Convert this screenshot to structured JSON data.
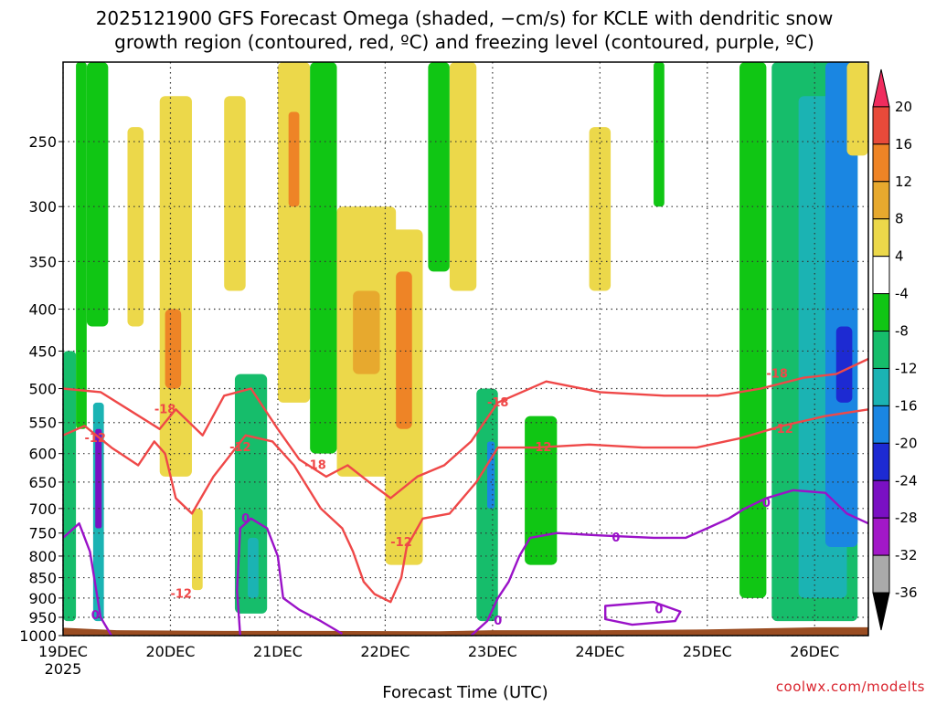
{
  "chart_data": {
    "type": "heatmap",
    "title_lines": [
      "2025121900 GFS Forecast Omega (shaded, −cm/s) for KCLE with dendritic snow",
      "growth region (contoured, red, ºC) and freezing level (contoured, purple, ºC)"
    ],
    "xlabel": "Forecast Time (UTC)",
    "ylabel": "",
    "credit": "coolwx.com/modelts",
    "x_ticks": [
      {
        "t": 0,
        "label": "19DEC",
        "sub": "2025"
      },
      {
        "t": 1,
        "label": "20DEC",
        "sub": ""
      },
      {
        "t": 2,
        "label": "21DEC",
        "sub": ""
      },
      {
        "t": 3,
        "label": "22DEC",
        "sub": ""
      },
      {
        "t": 4,
        "label": "23DEC",
        "sub": ""
      },
      {
        "t": 5,
        "label": "24DEC",
        "sub": ""
      },
      {
        "t": 6,
        "label": "25DEC",
        "sub": ""
      },
      {
        "t": 7,
        "label": "26DEC",
        "sub": ""
      }
    ],
    "x_range_days": [
      0,
      7.5
    ],
    "y_ticks": [
      250,
      300,
      350,
      400,
      450,
      500,
      550,
      600,
      650,
      700,
      750,
      800,
      850,
      900,
      950,
      1000
    ],
    "y_range_hpa": [
      200,
      1000
    ],
    "y_scale": "log",
    "grid": true,
    "colorbar": {
      "labels": [
        "20",
        "16",
        "12",
        "8",
        "4",
        "-4",
        "-8",
        "-12",
        "-16",
        "-20",
        "-24",
        "-28",
        "-32",
        "-36"
      ],
      "colors": [
        "#f02c5e",
        "#e84a3a",
        "#ee8426",
        "#e7a92e",
        "#ecd84a",
        "#ffffff",
        "#10c614",
        "#16bd6b",
        "#1bb3b3",
        "#1a86e2",
        "#1d2ad2",
        "#7a10c3",
        "#a218c8",
        "#aaaaaa",
        "#000000"
      ]
    },
    "omega_colors": {
      "pos4": "#ecd84a",
      "pos8": "#e7a92e",
      "pos12": "#ee8426",
      "pos16": "#e84a3a",
      "neg4": "#10c614",
      "neg8": "#16bd6b",
      "neg12": "#1bb3b3",
      "neg16": "#1a86e2",
      "neg20": "#1d2ad2",
      "neg24": "#7a10c3",
      "ground": "#9a4d22",
      "dgz": "#ef4848",
      "freezing": "#9a12c8"
    },
    "omega_regions": [
      {
        "t0": 0.0,
        "t1": 0.12,
        "p0": 450,
        "p1": 960,
        "level": "neg8"
      },
      {
        "t0": 0.12,
        "t1": 0.22,
        "p0": 200,
        "p1": 560,
        "level": "neg4"
      },
      {
        "t0": 0.22,
        "t1": 0.42,
        "p0": 200,
        "p1": 420,
        "level": "neg4"
      },
      {
        "t0": 0.28,
        "t1": 0.38,
        "p0": 520,
        "p1": 960,
        "level": "neg12"
      },
      {
        "t0": 0.3,
        "t1": 0.36,
        "p0": 560,
        "p1": 740,
        "level": "neg24"
      },
      {
        "t0": 0.6,
        "t1": 0.75,
        "p0": 240,
        "p1": 420,
        "level": "pos4"
      },
      {
        "t0": 0.9,
        "t1": 1.2,
        "p0": 220,
        "p1": 640,
        "level": "pos4"
      },
      {
        "t0": 0.95,
        "t1": 1.1,
        "p0": 400,
        "p1": 500,
        "level": "pos12"
      },
      {
        "t0": 1.2,
        "t1": 1.3,
        "p0": 700,
        "p1": 880,
        "level": "pos4"
      },
      {
        "t0": 1.5,
        "t1": 1.7,
        "p0": 220,
        "p1": 380,
        "level": "pos4"
      },
      {
        "t0": 1.6,
        "t1": 1.9,
        "p0": 480,
        "p1": 940,
        "level": "neg8"
      },
      {
        "t0": 1.72,
        "t1": 1.82,
        "p0": 760,
        "p1": 900,
        "level": "neg12"
      },
      {
        "t0": 2.0,
        "t1": 2.3,
        "p0": 200,
        "p1": 520,
        "level": "pos4"
      },
      {
        "t0": 2.1,
        "t1": 2.2,
        "p0": 230,
        "p1": 300,
        "level": "pos12"
      },
      {
        "t0": 2.3,
        "t1": 2.55,
        "p0": 200,
        "p1": 600,
        "level": "neg4"
      },
      {
        "t0": 2.55,
        "t1": 3.1,
        "p0": 300,
        "p1": 640,
        "level": "pos4"
      },
      {
        "t0": 2.7,
        "t1": 2.95,
        "p0": 380,
        "p1": 480,
        "level": "pos8"
      },
      {
        "t0": 3.0,
        "t1": 3.35,
        "p0": 320,
        "p1": 820,
        "level": "pos4"
      },
      {
        "t0": 3.1,
        "t1": 3.25,
        "p0": 360,
        "p1": 560,
        "level": "pos12"
      },
      {
        "t0": 3.4,
        "t1": 3.6,
        "p0": 200,
        "p1": 360,
        "level": "neg4"
      },
      {
        "t0": 3.6,
        "t1": 3.85,
        "p0": 200,
        "p1": 380,
        "level": "pos4"
      },
      {
        "t0": 3.85,
        "t1": 4.05,
        "p0": 500,
        "p1": 960,
        "level": "neg8"
      },
      {
        "t0": 3.95,
        "t1": 4.02,
        "p0": 580,
        "p1": 700,
        "level": "neg16"
      },
      {
        "t0": 4.3,
        "t1": 4.6,
        "p0": 540,
        "p1": 820,
        "level": "neg4"
      },
      {
        "t0": 4.9,
        "t1": 5.1,
        "p0": 240,
        "p1": 380,
        "level": "pos4"
      },
      {
        "t0": 5.5,
        "t1": 5.6,
        "p0": 200,
        "p1": 300,
        "level": "neg4"
      },
      {
        "t0": 6.3,
        "t1": 6.55,
        "p0": 200,
        "p1": 900,
        "level": "neg4"
      },
      {
        "t0": 6.6,
        "t1": 7.4,
        "p0": 200,
        "p1": 960,
        "level": "neg8"
      },
      {
        "t0": 6.85,
        "t1": 7.3,
        "p0": 220,
        "p1": 900,
        "level": "neg12"
      },
      {
        "t0": 7.1,
        "t1": 7.4,
        "p0": 200,
        "p1": 780,
        "level": "neg16"
      },
      {
        "t0": 7.2,
        "t1": 7.35,
        "p0": 420,
        "p1": 520,
        "level": "neg20"
      },
      {
        "t0": 7.3,
        "t1": 7.5,
        "p0": 200,
        "p1": 260,
        "level": "pos4"
      }
    ],
    "series": [
      {
        "name": "-18",
        "kind": "dgz",
        "label_points": [
          {
            "t": 0.95,
            "p": 530
          },
          {
            "t": 2.35,
            "p": 620
          },
          {
            "t": 4.05,
            "p": 520
          },
          {
            "t": 6.65,
            "p": 480
          }
        ],
        "points": [
          [
            0.0,
            500
          ],
          [
            0.35,
            505
          ],
          [
            0.9,
            560
          ],
          [
            1.05,
            530
          ],
          [
            1.3,
            570
          ],
          [
            1.5,
            510
          ],
          [
            1.75,
            500
          ],
          [
            2.0,
            560
          ],
          [
            2.2,
            610
          ],
          [
            2.45,
            640
          ],
          [
            2.65,
            620
          ],
          [
            2.85,
            650
          ],
          [
            3.05,
            680
          ],
          [
            3.3,
            640
          ],
          [
            3.55,
            620
          ],
          [
            3.8,
            580
          ],
          [
            4.05,
            520
          ],
          [
            4.5,
            490
          ],
          [
            5.0,
            505
          ],
          [
            5.6,
            510
          ],
          [
            6.1,
            510
          ],
          [
            6.5,
            500
          ],
          [
            6.9,
            485
          ],
          [
            7.2,
            480
          ],
          [
            7.5,
            460
          ]
        ]
      },
      {
        "name": "-12",
        "kind": "dgz",
        "label_points": [
          {
            "t": 0.3,
            "p": 575
          },
          {
            "t": 1.65,
            "p": 590
          },
          {
            "t": 3.15,
            "p": 770
          },
          {
            "t": 4.45,
            "p": 590
          },
          {
            "t": 6.7,
            "p": 560
          },
          {
            "t": 1.1,
            "p": 890
          }
        ],
        "points": [
          [
            0.0,
            570
          ],
          [
            0.2,
            555
          ],
          [
            0.45,
            590
          ],
          [
            0.7,
            620
          ],
          [
            0.85,
            580
          ],
          [
            0.95,
            600
          ],
          [
            1.05,
            680
          ],
          [
            1.2,
            710
          ],
          [
            1.4,
            640
          ],
          [
            1.7,
            570
          ],
          [
            1.95,
            580
          ],
          [
            2.15,
            620
          ],
          [
            2.4,
            700
          ],
          [
            2.6,
            740
          ],
          [
            2.7,
            790
          ],
          [
            2.8,
            860
          ],
          [
            2.9,
            890
          ],
          [
            3.05,
            910
          ],
          [
            3.15,
            850
          ],
          [
            3.2,
            780
          ],
          [
            3.35,
            720
          ],
          [
            3.6,
            710
          ],
          [
            3.85,
            650
          ],
          [
            4.05,
            590
          ],
          [
            4.4,
            590
          ],
          [
            4.9,
            585
          ],
          [
            5.4,
            590
          ],
          [
            5.9,
            590
          ],
          [
            6.3,
            575
          ],
          [
            6.7,
            555
          ],
          [
            7.1,
            540
          ],
          [
            7.5,
            530
          ]
        ]
      },
      {
        "name": "0",
        "kind": "freezing",
        "label_points": [
          {
            "t": 0.3,
            "p": 945
          },
          {
            "t": 1.7,
            "p": 720
          },
          {
            "t": 4.05,
            "p": 960
          },
          {
            "t": 5.15,
            "p": 760
          },
          {
            "t": 6.55,
            "p": 690
          },
          {
            "t": 5.55,
            "p": 930
          }
        ],
        "points": [
          [
            0.0,
            760
          ],
          [
            0.15,
            730
          ],
          [
            0.25,
            790
          ],
          [
            0.35,
            950
          ],
          [
            0.45,
            1000
          ]
        ]
      },
      {
        "name": "0",
        "kind": "freezing",
        "points": [
          [
            1.65,
            1000
          ],
          [
            1.62,
            880
          ],
          [
            1.65,
            740
          ],
          [
            1.75,
            720
          ],
          [
            1.9,
            740
          ],
          [
            2.0,
            800
          ],
          [
            2.05,
            900
          ],
          [
            2.2,
            930
          ],
          [
            2.4,
            960
          ],
          [
            2.6,
            995
          ]
        ]
      },
      {
        "name": "0",
        "kind": "freezing",
        "points": [
          [
            3.8,
            1000
          ],
          [
            3.95,
            960
          ],
          [
            4.05,
            900
          ],
          [
            4.15,
            860
          ],
          [
            4.25,
            800
          ],
          [
            4.35,
            760
          ],
          [
            4.6,
            750
          ],
          [
            5.0,
            755
          ],
          [
            5.5,
            760
          ],
          [
            5.8,
            760
          ],
          [
            6.0,
            740
          ],
          [
            6.2,
            720
          ],
          [
            6.35,
            700
          ],
          [
            6.55,
            680
          ],
          [
            6.8,
            665
          ],
          [
            7.1,
            670
          ],
          [
            7.3,
            710
          ],
          [
            7.5,
            730
          ]
        ]
      },
      {
        "name": "0",
        "kind": "freezing",
        "closed": true,
        "points": [
          [
            5.05,
            920
          ],
          [
            5.5,
            910
          ],
          [
            5.75,
            935
          ],
          [
            5.7,
            960
          ],
          [
            5.3,
            970
          ],
          [
            5.05,
            955
          ],
          [
            5.05,
            920
          ]
        ]
      }
    ]
  }
}
